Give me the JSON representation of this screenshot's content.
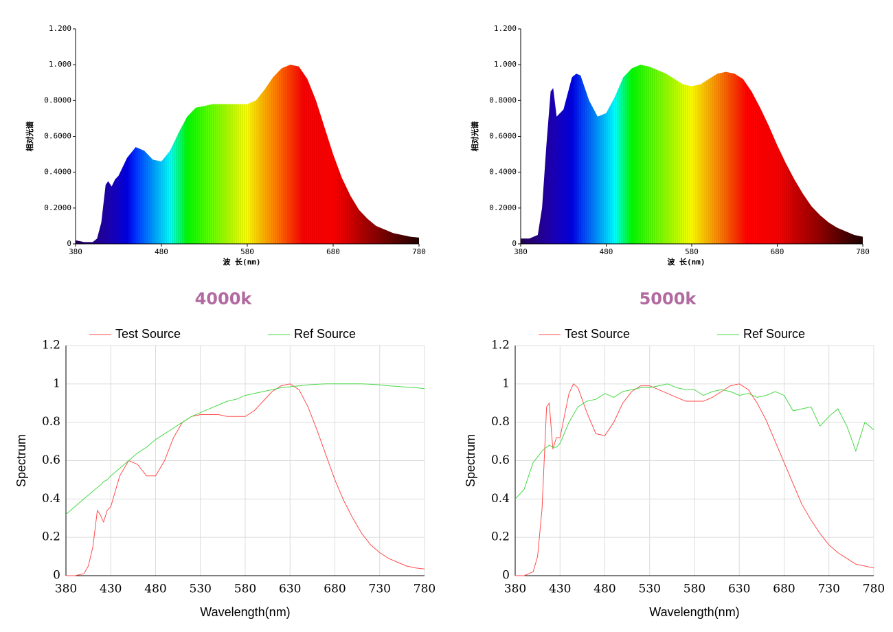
{
  "chart_data": [
    {
      "type": "area",
      "x_label": "波 长(nm)",
      "y_label": "相对光谱",
      "caption": "4000k",
      "x": [
        380,
        390,
        400,
        405,
        410,
        415,
        418,
        422,
        426,
        430,
        440,
        450,
        460,
        470,
        480,
        490,
        500,
        510,
        520,
        530,
        540,
        550,
        560,
        570,
        580,
        590,
        600,
        610,
        620,
        630,
        640,
        650,
        660,
        670,
        680,
        690,
        700,
        710,
        720,
        730,
        740,
        750,
        760,
        770,
        780
      ],
      "values": [
        0.02,
        0.01,
        0.01,
        0.03,
        0.12,
        0.33,
        0.35,
        0.32,
        0.36,
        0.38,
        0.48,
        0.54,
        0.52,
        0.47,
        0.46,
        0.52,
        0.62,
        0.71,
        0.76,
        0.77,
        0.78,
        0.78,
        0.78,
        0.78,
        0.78,
        0.8,
        0.86,
        0.93,
        0.98,
        1.0,
        0.99,
        0.92,
        0.8,
        0.65,
        0.5,
        0.37,
        0.27,
        0.19,
        0.14,
        0.1,
        0.08,
        0.06,
        0.05,
        0.04,
        0.035
      ],
      "xlim": [
        380,
        780
      ],
      "xticks": [
        380,
        480,
        580,
        680,
        780
      ],
      "ylim": [
        0,
        1.2
      ],
      "yticks": [
        0,
        {
          "value": 0.2,
          "label": "0.2000"
        },
        {
          "value": 0.4,
          "label": "0.4000"
        },
        {
          "value": 0.6,
          "label": "0.6000"
        },
        {
          "value": 0.8,
          "label": "0.8000"
        },
        {
          "value": 1,
          "label": "1.000"
        },
        {
          "value": 1.2,
          "label": "1.200"
        }
      ]
    },
    {
      "type": "area",
      "x_label": "波 长(nm)",
      "y_label": "相对光谱",
      "caption": "5000k",
      "x": [
        380,
        390,
        400,
        405,
        410,
        415,
        418,
        422,
        426,
        430,
        440,
        445,
        450,
        460,
        470,
        480,
        490,
        500,
        510,
        520,
        530,
        540,
        550,
        560,
        570,
        580,
        590,
        600,
        610,
        620,
        630,
        640,
        650,
        660,
        670,
        680,
        690,
        700,
        710,
        720,
        730,
        740,
        750,
        760,
        770,
        780
      ],
      "values": [
        0.03,
        0.03,
        0.05,
        0.2,
        0.55,
        0.85,
        0.87,
        0.71,
        0.73,
        0.75,
        0.93,
        0.95,
        0.94,
        0.8,
        0.71,
        0.73,
        0.82,
        0.93,
        0.98,
        1.0,
        0.99,
        0.97,
        0.95,
        0.92,
        0.89,
        0.88,
        0.89,
        0.92,
        0.95,
        0.96,
        0.95,
        0.92,
        0.85,
        0.76,
        0.66,
        0.55,
        0.45,
        0.36,
        0.28,
        0.21,
        0.16,
        0.12,
        0.09,
        0.07,
        0.05,
        0.04
      ],
      "xlim": [
        380,
        780
      ],
      "xticks": [
        380,
        480,
        580,
        680,
        780
      ],
      "ylim": [
        0,
        1.2
      ],
      "yticks": [
        0,
        {
          "value": 0.2,
          "label": "0.2000"
        },
        {
          "value": 0.4,
          "label": "0.4000"
        },
        {
          "value": 0.6,
          "label": "0.6000"
        },
        {
          "value": 0.8,
          "label": "0.8000"
        },
        {
          "value": 1,
          "label": "1.000"
        },
        {
          "value": 1.2,
          "label": "1.200"
        }
      ]
    },
    {
      "type": "line",
      "x_label": "Wavelength(nm)",
      "y_label": "Spectrum",
      "grid": true,
      "x": [
        380,
        390,
        400,
        405,
        410,
        415,
        418,
        422,
        426,
        430,
        440,
        450,
        460,
        470,
        480,
        490,
        500,
        510,
        520,
        530,
        540,
        550,
        560,
        570,
        580,
        590,
        600,
        610,
        620,
        630,
        640,
        650,
        660,
        670,
        680,
        690,
        700,
        710,
        720,
        730,
        740,
        750,
        760,
        770,
        780
      ],
      "series": [
        {
          "name": "Test Source",
          "color": "#ff4b4b",
          "values": [
            0,
            0,
            0.01,
            0.05,
            0.15,
            0.34,
            0.32,
            0.28,
            0.34,
            0.36,
            0.52,
            0.6,
            0.58,
            0.52,
            0.52,
            0.6,
            0.72,
            0.8,
            0.83,
            0.84,
            0.84,
            0.84,
            0.83,
            0.83,
            0.83,
            0.86,
            0.91,
            0.96,
            0.99,
            1.0,
            0.97,
            0.88,
            0.76,
            0.63,
            0.5,
            0.39,
            0.3,
            0.22,
            0.16,
            0.12,
            0.09,
            0.07,
            0.05,
            0.04,
            0.035
          ]
        },
        {
          "name": "Ref Source",
          "color": "#46d846",
          "values": [
            0.32,
            0.36,
            0.4,
            0.42,
            0.44,
            0.46,
            0.47,
            0.49,
            0.5,
            0.52,
            0.56,
            0.6,
            0.64,
            0.67,
            0.71,
            0.74,
            0.77,
            0.8,
            0.83,
            0.85,
            0.87,
            0.89,
            0.91,
            0.92,
            0.94,
            0.95,
            0.96,
            0.97,
            0.98,
            0.985,
            0.99,
            0.995,
            0.998,
            1.0,
            1.0,
            1.0,
            1.0,
            1.0,
            0.998,
            0.995,
            0.99,
            0.987,
            0.983,
            0.98,
            0.975
          ]
        }
      ],
      "xlim": [
        380,
        780
      ],
      "xticks": [
        380,
        430,
        480,
        530,
        580,
        630,
        680,
        730,
        780
      ],
      "ylim": [
        0,
        1.2
      ],
      "yticks": [
        0,
        0.2,
        0.4,
        0.6,
        0.8,
        1,
        1.2
      ]
    },
    {
      "type": "line",
      "x_label": "Wavelength(nm)",
      "y_label": "Spectrum",
      "grid": true,
      "x": [
        380,
        390,
        400,
        405,
        410,
        415,
        418,
        422,
        426,
        430,
        440,
        445,
        450,
        460,
        470,
        480,
        490,
        500,
        510,
        520,
        530,
        540,
        550,
        560,
        570,
        580,
        590,
        600,
        610,
        620,
        630,
        640,
        650,
        660,
        670,
        680,
        690,
        700,
        710,
        720,
        730,
        740,
        750,
        760,
        770,
        780
      ],
      "series": [
        {
          "name": "Test Source",
          "color": "#ff4b4b",
          "values": [
            0,
            0,
            0.02,
            0.1,
            0.35,
            0.88,
            0.9,
            0.66,
            0.72,
            0.72,
            0.95,
            1.0,
            0.98,
            0.85,
            0.74,
            0.73,
            0.8,
            0.9,
            0.96,
            0.99,
            0.99,
            0.97,
            0.95,
            0.93,
            0.91,
            0.91,
            0.91,
            0.93,
            0.96,
            0.99,
            1.0,
            0.97,
            0.9,
            0.81,
            0.7,
            0.59,
            0.48,
            0.37,
            0.29,
            0.22,
            0.16,
            0.12,
            0.09,
            0.06,
            0.05,
            0.04
          ]
        },
        {
          "name": "Ref Source",
          "color": "#46d846",
          "values": [
            0.4,
            0.45,
            0.59,
            0.62,
            0.65,
            0.67,
            0.68,
            0.67,
            0.67,
            0.69,
            0.8,
            0.84,
            0.88,
            0.91,
            0.92,
            0.95,
            0.93,
            0.96,
            0.97,
            0.98,
            0.98,
            0.99,
            1.0,
            0.98,
            0.97,
            0.97,
            0.94,
            0.96,
            0.97,
            0.96,
            0.94,
            0.95,
            0.93,
            0.94,
            0.96,
            0.94,
            0.86,
            0.87,
            0.88,
            0.78,
            0.83,
            0.87,
            0.78,
            0.65,
            0.8,
            0.76
          ]
        }
      ],
      "xlim": [
        380,
        780
      ],
      "xticks": [
        380,
        430,
        480,
        530,
        580,
        630,
        680,
        730,
        780
      ],
      "ylim": [
        0,
        1.2
      ],
      "yticks": [
        0,
        0.2,
        0.4,
        0.6,
        0.8,
        1,
        1.2
      ]
    }
  ]
}
